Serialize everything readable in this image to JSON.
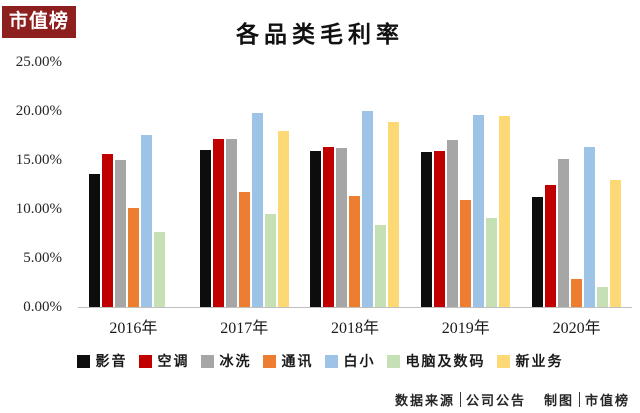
{
  "logo": {
    "text": "市值榜",
    "bg_color": "#8E1F1F",
    "text_color": "#FFFFFF"
  },
  "title": "各品类毛利率",
  "footer": {
    "segments": [
      {
        "label": "数据来源",
        "value": "公司公告"
      },
      {
        "label": "制图",
        "value": "市值榜"
      }
    ]
  },
  "chart_data": {
    "type": "bar",
    "title": "各品类毛利率",
    "categories": [
      "2016年",
      "2017年",
      "2018年",
      "2019年",
      "2020年"
    ],
    "series": [
      {
        "name": "影音",
        "color": "#0D0D0D",
        "values": [
          13.6,
          16.0,
          15.9,
          15.8,
          11.2
        ]
      },
      {
        "name": "空调",
        "color": "#C00000",
        "values": [
          15.6,
          17.1,
          16.3,
          15.9,
          12.4
        ]
      },
      {
        "name": "冰洗",
        "color": "#A6A6A6",
        "values": [
          15.0,
          17.1,
          16.2,
          17.0,
          15.1
        ]
      },
      {
        "name": "通讯",
        "color": "#ED7D31",
        "values": [
          10.1,
          11.7,
          11.3,
          10.9,
          2.9
        ]
      },
      {
        "name": "白小",
        "color": "#9DC3E6",
        "values": [
          17.6,
          19.8,
          20.0,
          19.6,
          16.3
        ]
      },
      {
        "name": "电脑及数码",
        "color": "#C5E0B4",
        "values": [
          7.7,
          9.5,
          8.4,
          9.1,
          2.0
        ]
      },
      {
        "name": "新业务",
        "color": "#FCD975",
        "values": [
          null,
          18.0,
          18.9,
          19.5,
          13.0
        ]
      }
    ],
    "ylim": [
      0,
      25
    ],
    "ytick_step": 5,
    "ytick_labels": [
      "0.00%",
      "5.00%",
      "10.00%",
      "15.00%",
      "20.00%",
      "25.00%"
    ],
    "grid": false,
    "legend_position": "bottom",
    "baseline_color": "#BFBFBF"
  }
}
